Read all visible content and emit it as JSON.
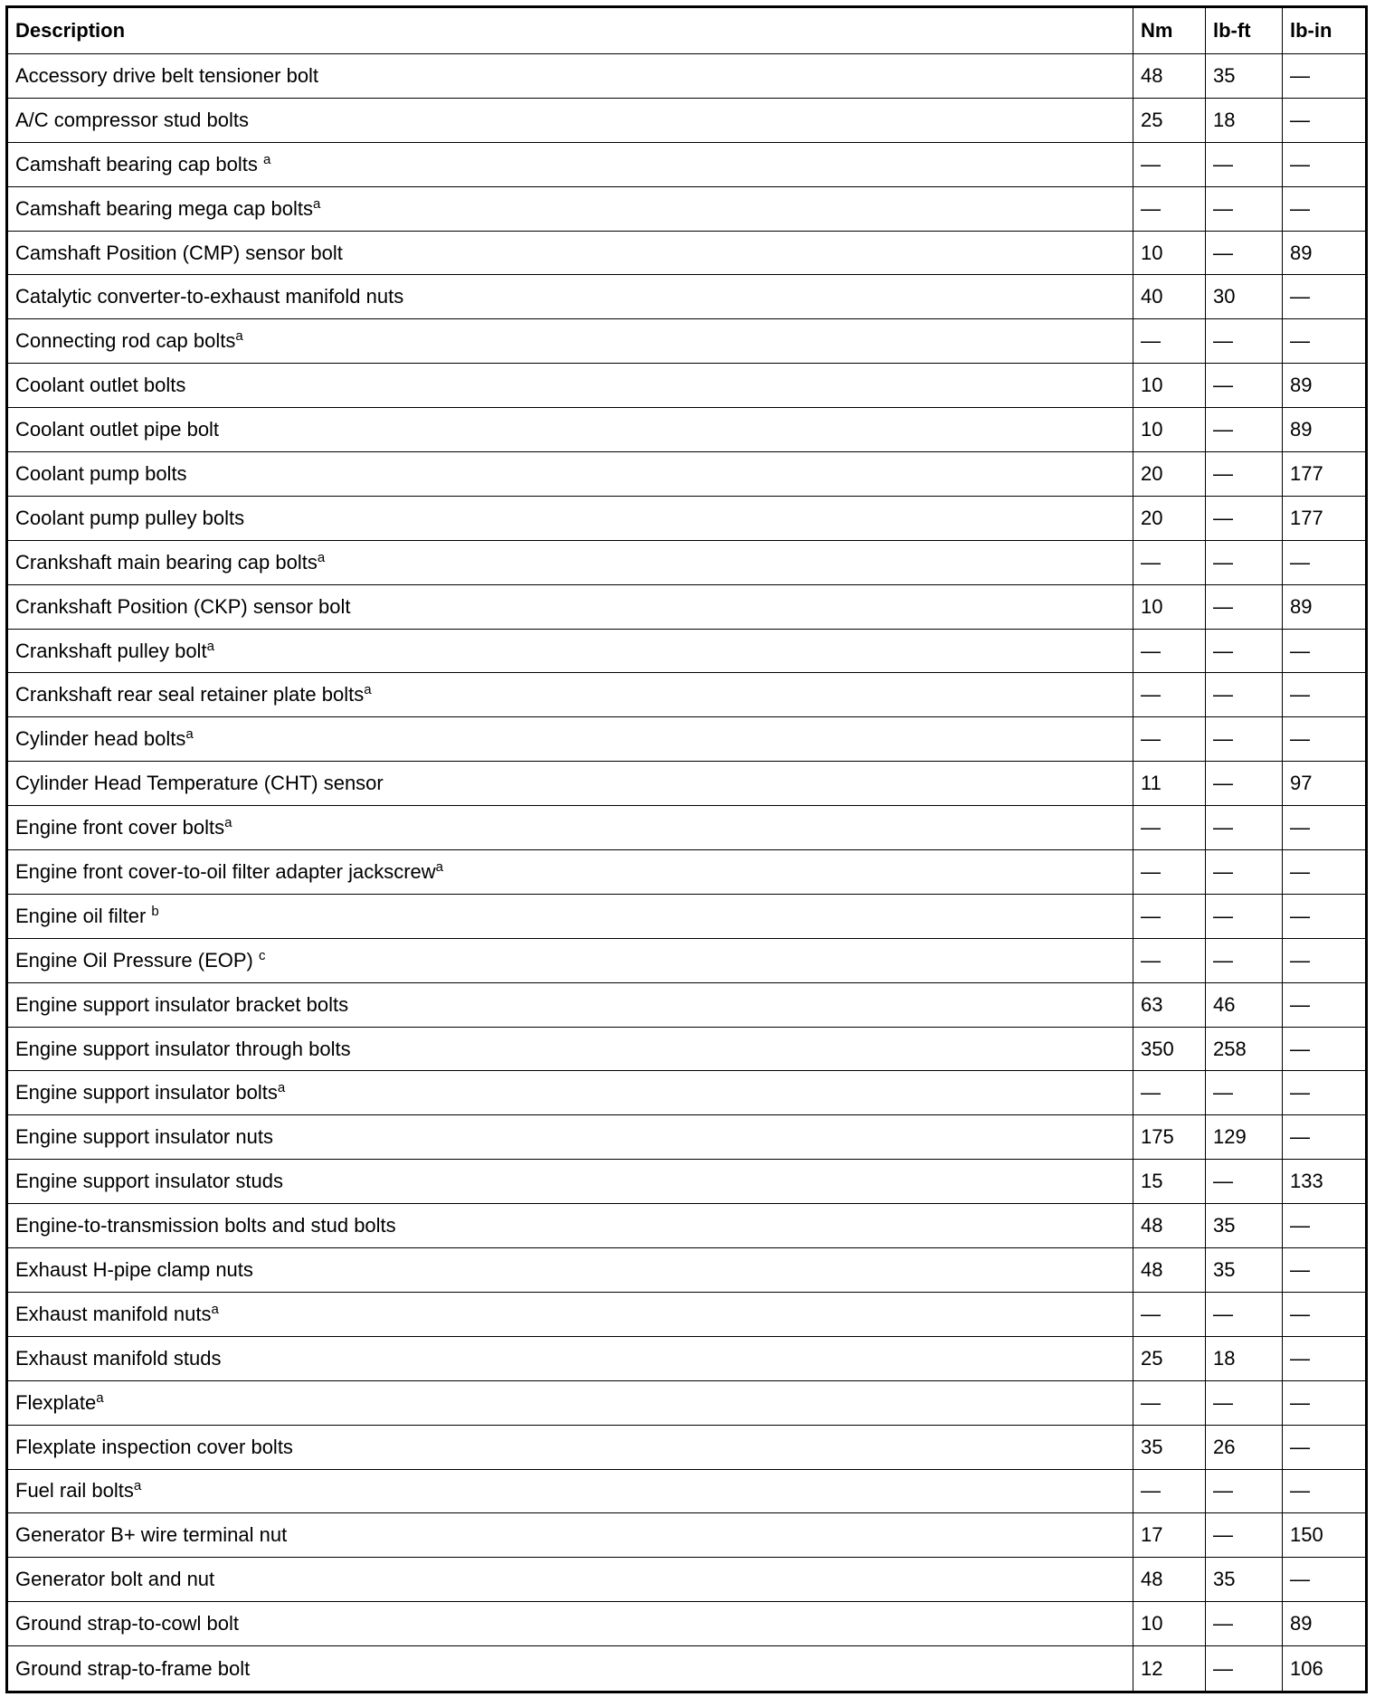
{
  "headers": [
    "Description",
    "Nm",
    "lb-ft",
    "lb-in"
  ],
  "rows": [
    {
      "desc": "Accessory drive belt tensioner bolt",
      "note": "",
      "nm": "48",
      "lbft": "35",
      "lbin": "—"
    },
    {
      "desc": "A/C compressor stud bolts",
      "note": "",
      "nm": "25",
      "lbft": "18",
      "lbin": "—"
    },
    {
      "desc": "Camshaft bearing cap bolts ",
      "note": "a",
      "nm": "—",
      "lbft": "—",
      "lbin": "—"
    },
    {
      "desc": "Camshaft bearing mega cap bolts",
      "note": "a",
      "nm": "—",
      "lbft": "—",
      "lbin": "—"
    },
    {
      "desc": "Camshaft Position (CMP) sensor bolt",
      "note": "",
      "nm": "10",
      "lbft": "—",
      "lbin": "89"
    },
    {
      "desc": "Catalytic converter-to-exhaust manifold nuts",
      "note": "",
      "nm": "40",
      "lbft": "30",
      "lbin": "—"
    },
    {
      "desc": "Connecting rod cap bolts",
      "note": "a",
      "nm": "—",
      "lbft": "—",
      "lbin": "—"
    },
    {
      "desc": "Coolant outlet bolts",
      "note": "",
      "nm": "10",
      "lbft": "—",
      "lbin": "89"
    },
    {
      "desc": "Coolant outlet pipe bolt",
      "note": "",
      "nm": "10",
      "lbft": "—",
      "lbin": "89"
    },
    {
      "desc": "Coolant pump bolts",
      "note": "",
      "nm": "20",
      "lbft": "—",
      "lbin": "177"
    },
    {
      "desc": "Coolant pump pulley bolts",
      "note": "",
      "nm": "20",
      "lbft": "—",
      "lbin": "177"
    },
    {
      "desc": "Crankshaft main bearing cap bolts",
      "note": "a",
      "nm": "—",
      "lbft": "—",
      "lbin": "—"
    },
    {
      "desc": "Crankshaft Position (CKP) sensor bolt",
      "note": "",
      "nm": "10",
      "lbft": "—",
      "lbin": "89"
    },
    {
      "desc": "Crankshaft pulley bolt",
      "note": "a",
      "nm": "—",
      "lbft": "—",
      "lbin": "—"
    },
    {
      "desc": "Crankshaft rear seal retainer plate bolts",
      "note": "a",
      "nm": "—",
      "lbft": "—",
      "lbin": "—"
    },
    {
      "desc": "Cylinder head bolts",
      "note": "a",
      "nm": "—",
      "lbft": "—",
      "lbin": "—"
    },
    {
      "desc": "Cylinder Head Temperature (CHT) sensor",
      "note": "",
      "nm": "11",
      "lbft": "—",
      "lbin": "97"
    },
    {
      "desc": "Engine front cover bolts",
      "note": "a",
      "nm": "—",
      "lbft": "—",
      "lbin": "—"
    },
    {
      "desc": "Engine front cover-to-oil filter adapter jackscrew",
      "note": "a",
      "nm": "—",
      "lbft": "—",
      "lbin": "—"
    },
    {
      "desc": "Engine oil filter ",
      "note": "b",
      "nm": "—",
      "lbft": "—",
      "lbin": "—"
    },
    {
      "desc": "Engine Oil Pressure (EOP)  ",
      "note": "c",
      "nm": "—",
      "lbft": "—",
      "lbin": "—"
    },
    {
      "desc": "Engine support insulator bracket bolts",
      "note": "",
      "nm": "63",
      "lbft": "46",
      "lbin": "—"
    },
    {
      "desc": "Engine support insulator through bolts",
      "note": "",
      "nm": "350",
      "lbft": "258",
      "lbin": "—"
    },
    {
      "desc": "Engine support insulator bolts",
      "note": "a",
      "nm": "—",
      "lbft": "—",
      "lbin": "—"
    },
    {
      "desc": "Engine support insulator nuts",
      "note": "",
      "nm": "175",
      "lbft": "129",
      "lbin": "—"
    },
    {
      "desc": "Engine support insulator studs",
      "note": "",
      "nm": "15",
      "lbft": "—",
      "lbin": "133"
    },
    {
      "desc": "Engine-to-transmission bolts and stud bolts",
      "note": "",
      "nm": "48",
      "lbft": "35",
      "lbin": "—"
    },
    {
      "desc": "Exhaust H-pipe clamp nuts",
      "note": "",
      "nm": "48",
      "lbft": "35",
      "lbin": "—"
    },
    {
      "desc": "Exhaust manifold nuts",
      "note": "a",
      "nm": "—",
      "lbft": "—",
      "lbin": "—"
    },
    {
      "desc": "Exhaust manifold studs",
      "note": "",
      "nm": "25",
      "lbft": "18",
      "lbin": "—"
    },
    {
      "desc": "Flexplate",
      "note": "a",
      "nm": "—",
      "lbft": "—",
      "lbin": "—"
    },
    {
      "desc": "Flexplate inspection cover bolts",
      "note": "",
      "nm": "35",
      "lbft": "26",
      "lbin": "—"
    },
    {
      "desc": "Fuel rail bolts",
      "note": "a",
      "nm": "—",
      "lbft": "—",
      "lbin": "—"
    },
    {
      "desc": "Generator B+ wire terminal nut",
      "note": "",
      "nm": "17",
      "lbft": "—",
      "lbin": "150"
    },
    {
      "desc": "Generator bolt and nut",
      "note": "",
      "nm": "48",
      "lbft": "35",
      "lbin": "—"
    },
    {
      "desc": "Ground strap-to-cowl bolt",
      "note": "",
      "nm": "10",
      "lbft": "—",
      "lbin": "89"
    },
    {
      "desc": "Ground strap-to-frame bolt",
      "note": "",
      "nm": "12",
      "lbft": "—",
      "lbin": "106"
    }
  ]
}
